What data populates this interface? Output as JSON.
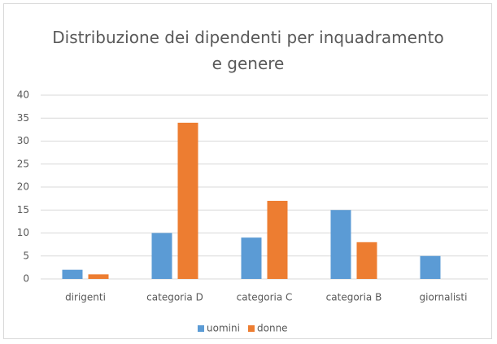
{
  "chart_data": {
    "type": "bar",
    "title": "Distribuzione dei dipendenti per inquadramento e genere",
    "categories": [
      "dirigenti",
      "categoria D",
      "categoria C",
      "categoria B",
      "giornalisti"
    ],
    "series": [
      {
        "name": "uomini",
        "color": "#5b9bd5",
        "values": [
          2,
          10,
          9,
          15,
          5
        ]
      },
      {
        "name": "donne",
        "color": "#ed7d31",
        "values": [
          1,
          34,
          17,
          8,
          0
        ]
      }
    ],
    "ylim": [
      0,
      40
    ],
    "yticks": [
      0,
      5,
      10,
      15,
      20,
      25,
      30,
      35,
      40
    ],
    "grid": true,
    "legend": "bottom"
  }
}
